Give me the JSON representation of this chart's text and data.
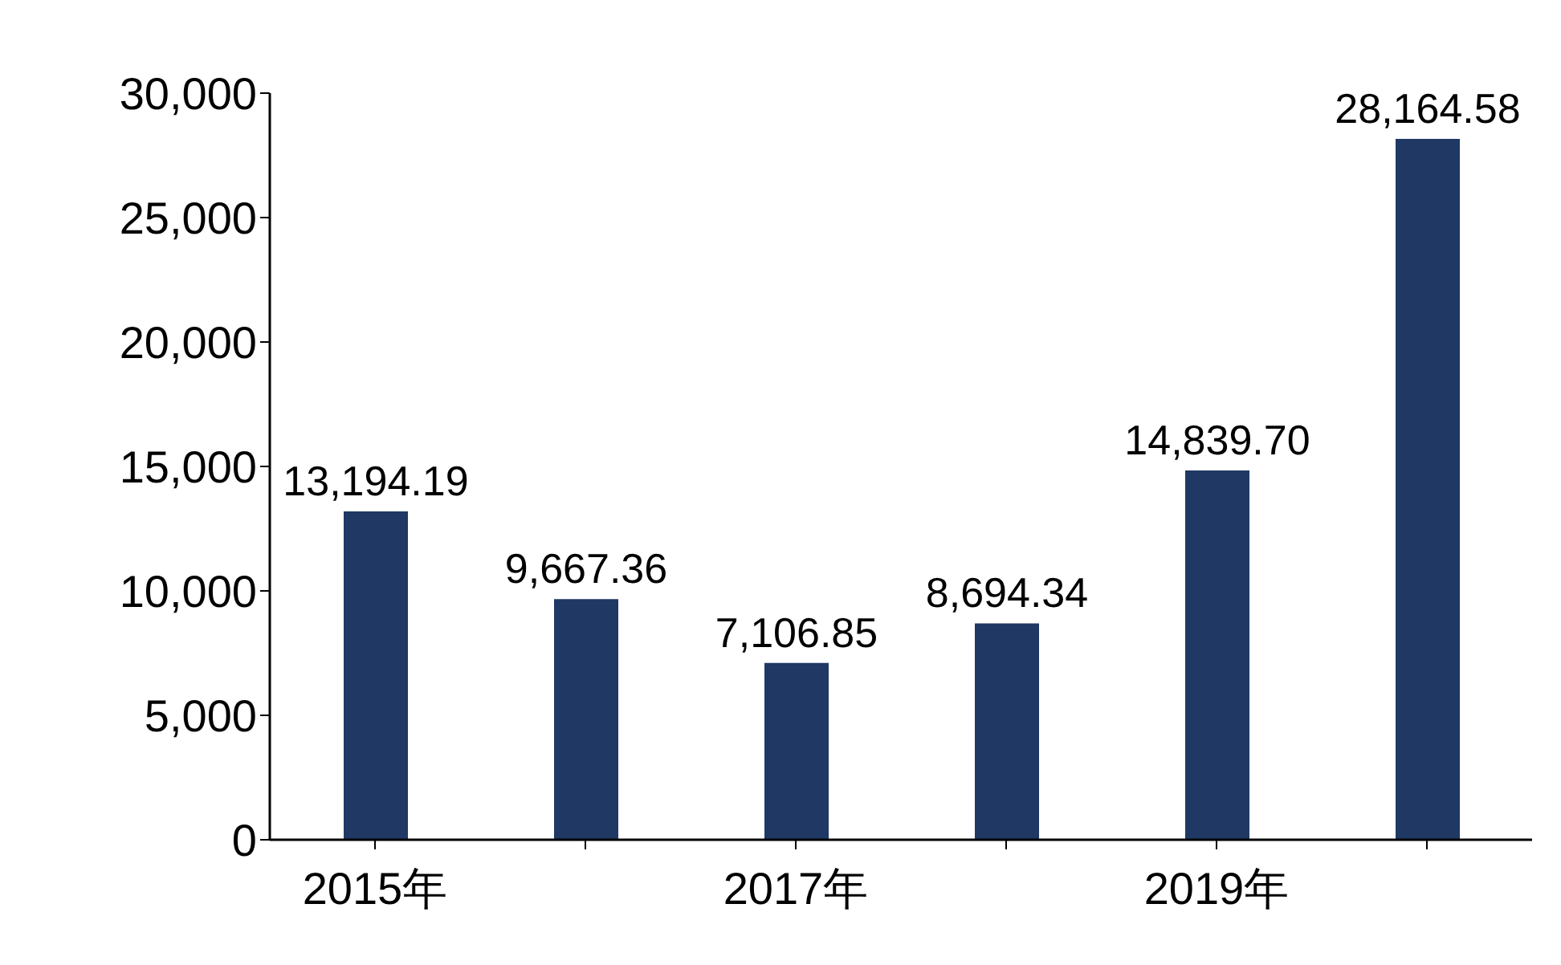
{
  "chart_data": {
    "type": "bar",
    "categories": [
      "2015年",
      null,
      "2017年",
      null,
      "2019年",
      null
    ],
    "values": [
      13194.19,
      9667.36,
      7106.85,
      8694.34,
      14839.7,
      28164.58
    ],
    "color": "#1f3864",
    "value_labels": [
      "13,194.19",
      "9,667.36",
      "7,106.85",
      "8,694.34",
      "14,839.70",
      "28,164.58"
    ],
    "ylim": [
      0,
      30000
    ],
    "yticks": [
      {
        "value": 0,
        "label": "0"
      },
      {
        "value": 5000,
        "label": "5,000"
      },
      {
        "value": 10000,
        "label": "10,000"
      },
      {
        "value": 15000,
        "label": "15,000"
      },
      {
        "value": 20000,
        "label": "20,000"
      },
      {
        "value": 25000,
        "label": "25,000"
      },
      {
        "value": 30000,
        "label": "30,000"
      }
    ],
    "grid": false,
    "legend": false
  }
}
